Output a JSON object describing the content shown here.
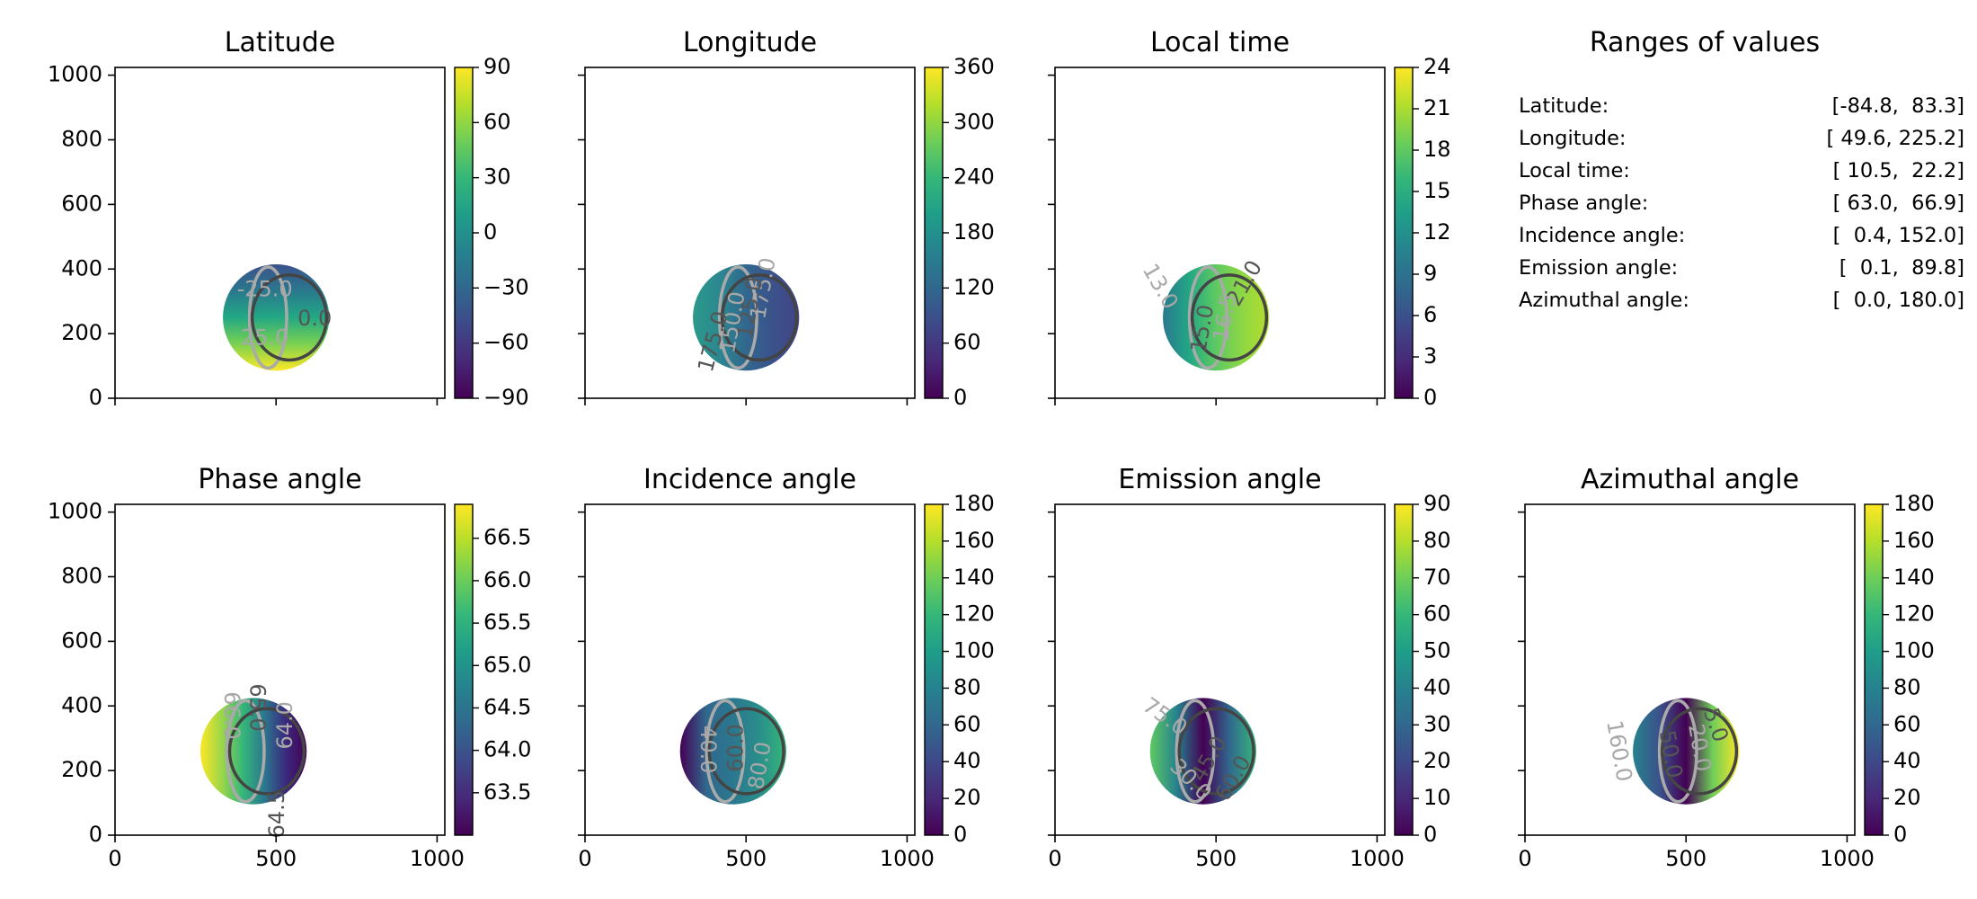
{
  "chart_data": [
    {
      "type": "heatmap",
      "title": "Latitude",
      "xlim": [
        0,
        1024
      ],
      "ylim": [
        0,
        1024
      ],
      "xticks": [
        0,
        500,
        1000
      ],
      "yticks": [
        0,
        200,
        400,
        600,
        800,
        1000
      ],
      "x_tick_labels_shown": false,
      "y_tick_labels_shown": true,
      "disk": {
        "center": [
          500,
          250
        ],
        "radius": 165
      },
      "colormap": "viridis",
      "colorbar": {
        "min": -90,
        "max": 90,
        "ticks": [
          -90,
          -60,
          -30,
          0,
          30,
          60,
          90
        ],
        "tick_labels": [
          "−90",
          "−60",
          "−30",
          "0",
          "30",
          "60",
          "90"
        ]
      },
      "contour_labels": [
        {
          "text": "-25.0",
          "at": [
            465,
            335
          ],
          "rotation": 0
        },
        {
          "text": "0.0",
          "at": [
            620,
            245
          ],
          "rotation": 0
        },
        {
          "text": "25.0",
          "at": [
            465,
            185
          ],
          "rotation": 0
        }
      ]
    },
    {
      "type": "heatmap",
      "title": "Longitude",
      "xlim": [
        0,
        1024
      ],
      "ylim": [
        0,
        1024
      ],
      "xticks": [
        0,
        500,
        1000
      ],
      "yticks": [
        0,
        200,
        400,
        600,
        800,
        1000
      ],
      "x_tick_labels_shown": false,
      "y_tick_labels_shown": false,
      "disk": {
        "center": [
          500,
          250
        ],
        "radius": 165
      },
      "colormap": "viridis",
      "colorbar": {
        "min": 0,
        "max": 360,
        "ticks": [
          0,
          60,
          120,
          180,
          240,
          300,
          360
        ],
        "tick_labels": [
          "0",
          "60",
          "120",
          "180",
          "240",
          "300",
          "360"
        ]
      },
      "contour_labels": [
        {
          "text": "175.0",
          "at": [
            555,
            340
          ],
          "rotation": 80
        },
        {
          "text": "125.0",
          "at": [
            515,
            280
          ],
          "rotation": 80
        },
        {
          "text": "150.0",
          "at": [
            460,
            235
          ],
          "rotation": 80
        },
        {
          "text": "175.0",
          "at": [
            400,
            175
          ],
          "rotation": 75
        }
      ]
    },
    {
      "type": "heatmap",
      "title": "Local time",
      "xlim": [
        0,
        1024
      ],
      "ylim": [
        0,
        1024
      ],
      "xticks": [
        0,
        500,
        1000
      ],
      "yticks": [
        0,
        200,
        400,
        600,
        800,
        1000
      ],
      "x_tick_labels_shown": false,
      "y_tick_labels_shown": false,
      "disk": {
        "center": [
          500,
          250
        ],
        "radius": 165
      },
      "colormap": "viridis",
      "colorbar": {
        "min": 0,
        "max": 24,
        "ticks": [
          0,
          3,
          6,
          9,
          12,
          15,
          18,
          21,
          24
        ],
        "tick_labels": [
          "0",
          "3",
          "6",
          "9",
          "12",
          "15",
          "18",
          "21",
          "24"
        ]
      },
      "contour_labels": [
        {
          "text": "13.0",
          "at": [
            325,
            345
          ],
          "rotation": -60
        },
        {
          "text": "21.0",
          "at": [
            590,
            355
          ],
          "rotation": 60
        },
        {
          "text": "16.5",
          "at": [
            530,
            250
          ],
          "rotation": 80
        },
        {
          "text": "15.0",
          "at": [
            460,
            215
          ],
          "rotation": 80
        }
      ]
    },
    {
      "type": "text-panel",
      "title": "Ranges of values",
      "rows": [
        {
          "label": "Latitude:",
          "value": "[-84.8,  83.3]"
        },
        {
          "label": "Longitude:",
          "value": "[ 49.6, 225.2]"
        },
        {
          "label": "Local time:",
          "value": "[ 10.5,  22.2]"
        },
        {
          "label": "Phase angle:",
          "value": "[ 63.0,  66.9]"
        },
        {
          "label": "Incidence angle:",
          "value": "[  0.4, 152.0]"
        },
        {
          "label": "Emission angle:",
          "value": "[  0.1,  89.8]"
        },
        {
          "label": "Azimuthal angle:",
          "value": "[  0.0, 180.0]"
        }
      ]
    },
    {
      "type": "heatmap",
      "title": "Phase angle",
      "xlim": [
        0,
        1024
      ],
      "ylim": [
        0,
        1024
      ],
      "xticks": [
        0,
        500,
        1000
      ],
      "yticks": [
        0,
        200,
        400,
        600,
        800,
        1000
      ],
      "x_tick_labels_shown": true,
      "y_tick_labels_shown": true,
      "x_tick_labels": [
        "0",
        "500",
        "1000"
      ],
      "disk": {
        "center": [
          430,
          260
        ],
        "radius": 165
      },
      "colormap": "viridis",
      "colorbar": {
        "min": 63.0,
        "max": 66.9,
        "ticks": [
          63.5,
          64.0,
          64.5,
          65.0,
          65.5,
          66.0,
          66.5
        ],
        "tick_labels": [
          "63.5",
          "64.0",
          "64.5",
          "65.0",
          "65.5",
          "66.0",
          "66.5"
        ]
      },
      "contour_labels": [
        {
          "text": "66.0",
          "at": [
            360,
            370
          ],
          "rotation": -90
        },
        {
          "text": "65.0",
          "at": [
            440,
            395
          ],
          "rotation": -90
        },
        {
          "text": "64.0",
          "at": [
            530,
            340
          ],
          "rotation": 90
        },
        {
          "text": "64.5",
          "at": [
            505,
            65
          ],
          "rotation": 90
        }
      ]
    },
    {
      "type": "heatmap",
      "title": "Incidence angle",
      "xlim": [
        0,
        1024
      ],
      "ylim": [
        0,
        1024
      ],
      "xticks": [
        0,
        500,
        1000
      ],
      "yticks": [
        0,
        200,
        400,
        600,
        800,
        1000
      ],
      "x_tick_labels_shown": true,
      "y_tick_labels_shown": false,
      "x_tick_labels": [
        "0",
        "500",
        "1000"
      ],
      "disk": {
        "center": [
          460,
          260
        ],
        "radius": 165
      },
      "colormap": "viridis",
      "colorbar": {
        "min": 0,
        "max": 180,
        "ticks": [
          0,
          20,
          40,
          60,
          80,
          100,
          120,
          140,
          160,
          180
        ],
        "tick_labels": [
          "0",
          "20",
          "40",
          "60",
          "80",
          "100",
          "120",
          "140",
          "160",
          "180"
        ]
      },
      "contour_labels": [
        {
          "text": "40.0",
          "at": [
            380,
            265
          ],
          "rotation": -90
        },
        {
          "text": "60.0",
          "at": [
            470,
            270
          ],
          "rotation": 90
        },
        {
          "text": "80.0",
          "at": [
            545,
            215
          ],
          "rotation": 80
        }
      ]
    },
    {
      "type": "heatmap",
      "title": "Emission angle",
      "xlim": [
        0,
        1024
      ],
      "ylim": [
        0,
        1024
      ],
      "xticks": [
        0,
        500,
        1000
      ],
      "yticks": [
        0,
        200,
        400,
        600,
        800,
        1000
      ],
      "x_tick_labels_shown": true,
      "y_tick_labels_shown": false,
      "x_tick_labels": [
        "0",
        "500",
        "1000"
      ],
      "disk": {
        "center": [
          460,
          260
        ],
        "radius": 165
      },
      "colormap": "viridis",
      "colorbar": {
        "min": 0,
        "max": 90,
        "ticks": [
          0,
          10,
          20,
          30,
          40,
          50,
          60,
          70,
          80,
          90
        ],
        "tick_labels": [
          "0",
          "10",
          "20",
          "30",
          "40",
          "50",
          "60",
          "70",
          "80",
          "90"
        ]
      },
      "contour_labels": [
        {
          "text": "75.0",
          "at": [
            340,
            365
          ],
          "rotation": -35
        },
        {
          "text": "45.0",
          "at": [
            480,
            235
          ],
          "rotation": 60
        },
        {
          "text": "30.0",
          "at": [
            420,
            170
          ],
          "rotation": -45
        },
        {
          "text": "60.0",
          "at": [
            555,
            175
          ],
          "rotation": 60
        }
      ]
    },
    {
      "type": "heatmap",
      "title": "Azimuthal angle",
      "xlim": [
        0,
        1024
      ],
      "ylim": [
        0,
        1024
      ],
      "xticks": [
        0,
        500,
        1000
      ],
      "yticks": [
        0,
        200,
        400,
        600,
        800,
        1000
      ],
      "x_tick_labels_shown": true,
      "y_tick_labels_shown": false,
      "x_tick_labels": [
        "0",
        "500",
        "1000"
      ],
      "disk": {
        "center": [
          500,
          260
        ],
        "radius": 165
      },
      "colormap": "viridis",
      "colorbar": {
        "min": 0,
        "max": 180,
        "ticks": [
          0,
          20,
          40,
          60,
          80,
          100,
          120,
          140,
          160,
          180
        ],
        "tick_labels": [
          "0",
          "20",
          "40",
          "60",
          "80",
          "100",
          "120",
          "140",
          "160",
          "180"
        ]
      },
      "contour_labels": [
        {
          "text": "160.0",
          "at": [
            290,
            260
          ],
          "rotation": -80
        },
        {
          "text": "50.0",
          "at": [
            450,
            250
          ],
          "rotation": -80
        },
        {
          "text": "20.0",
          "at": [
            540,
            270
          ],
          "rotation": -80
        },
        {
          "text": "5.0",
          "at": [
            590,
            340
          ],
          "rotation": -70
        }
      ]
    }
  ]
}
